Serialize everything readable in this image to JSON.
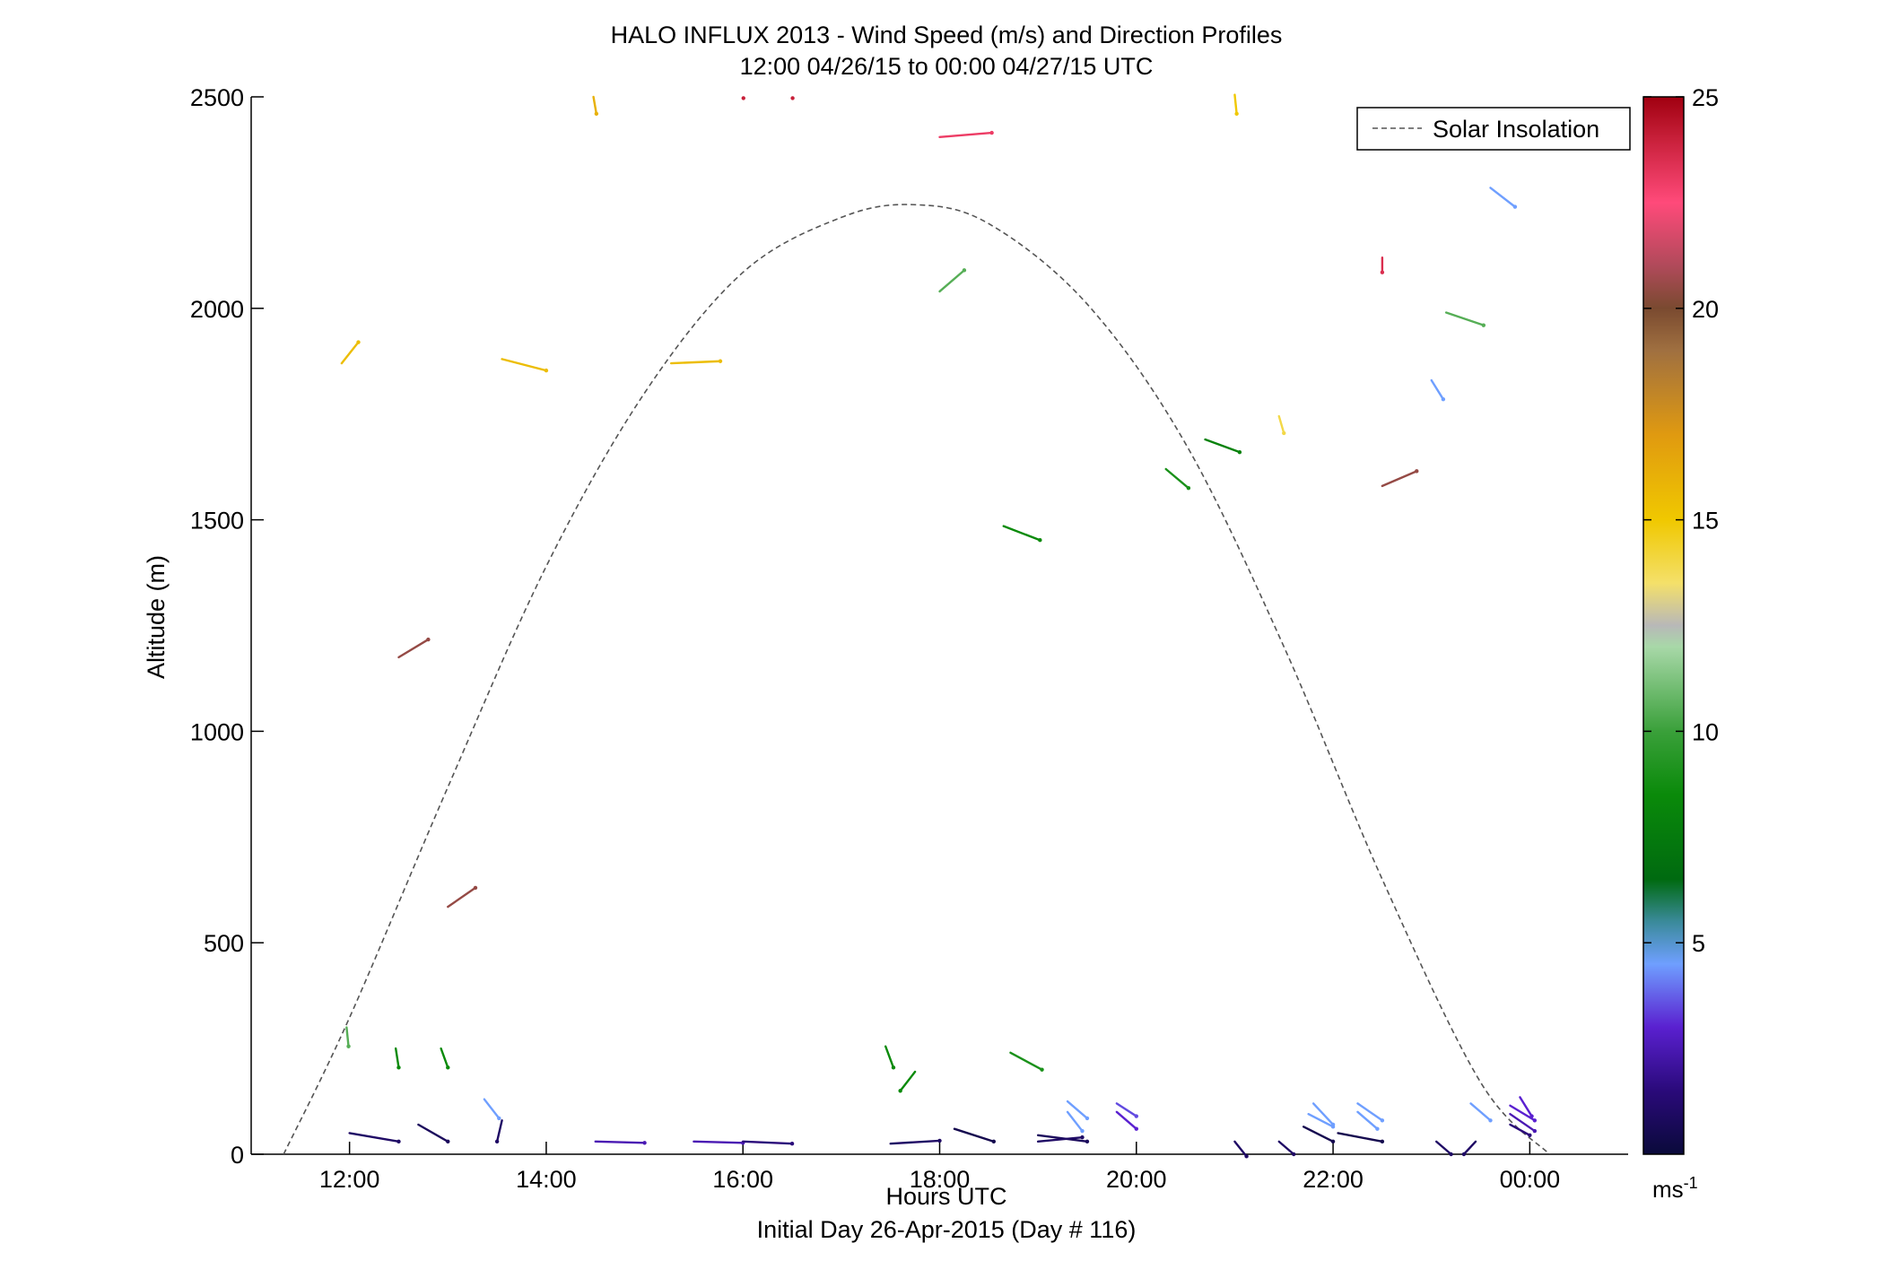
{
  "chart_data": {
    "type": "scatter",
    "title": "HALO INFLUX 2013 - Wind Speed (m/s) and Direction Profiles",
    "subtitle": "12:00 04/26/15 to 00:00 04/27/15  UTC",
    "xlabel": "Hours UTC",
    "xlabel2": "Initial Day 26-Apr-2015 (Day # 116)",
    "ylabel": "Altitude (m)",
    "xlim": [
      11.0,
      25.0
    ],
    "ylim": [
      0,
      2500
    ],
    "x_ticks": [
      12,
      14,
      16,
      18,
      20,
      22,
      24
    ],
    "x_tick_labels": [
      "12:00",
      "14:00",
      "16:00",
      "18:00",
      "20:00",
      "22:00",
      "00:00"
    ],
    "y_ticks": [
      0,
      500,
      1000,
      1500,
      2000,
      2500
    ],
    "y_tick_labels": [
      "0",
      "500",
      "1000",
      "1500",
      "2000",
      "2500"
    ],
    "grid": false,
    "legend": {
      "position": "top-right",
      "entries": [
        "Solar Insolation"
      ]
    },
    "colorbar": {
      "range": [
        0,
        25
      ],
      "ticks": [
        5,
        10,
        15,
        20,
        25
      ],
      "tick_labels": [
        "5",
        "10",
        "15",
        "20",
        "25"
      ],
      "unit_base": "ms",
      "unit_exp": "-1"
    },
    "solar_insolation": {
      "name": "Solar Insolation",
      "x": [
        11.33,
        12.0,
        13.0,
        14.0,
        15.0,
        16.0,
        17.0,
        17.75,
        18.5,
        19.5,
        20.5,
        21.5,
        22.5,
        23.5,
        24.2
      ],
      "y": [
        0,
        323,
        868,
        1390,
        1800,
        2085,
        2215,
        2245,
        2200,
        2010,
        1680,
        1200,
        650,
        170,
        0
      ]
    },
    "wind_vectors": [
      {
        "t": 11.92,
        "alt": 1870,
        "dt": 0.17,
        "dalt": 50,
        "speed": 15.5
      },
      {
        "t": 12.5,
        "alt": 1175,
        "dt": 0.3,
        "dalt": 42,
        "speed": 20.5
      },
      {
        "t": 13.0,
        "alt": 585,
        "dt": 0.28,
        "dalt": 45,
        "speed": 20.5
      },
      {
        "t": 13.55,
        "alt": 1880,
        "dt": 0.45,
        "dalt": -27,
        "speed": 15.5
      },
      {
        "t": 14.48,
        "alt": 2500,
        "dt": 0.03,
        "dalt": -40,
        "speed": 16
      },
      {
        "t": 15.27,
        "alt": 1870,
        "dt": 0.5,
        "dalt": 5,
        "speed": 15.5
      },
      {
        "t": 16.0,
        "alt": 2497,
        "dt": 0.005,
        "dalt": 0,
        "speed": 24
      },
      {
        "t": 16.5,
        "alt": 2497,
        "dt": 0.005,
        "dalt": 0,
        "speed": 24
      },
      {
        "t": 18.0,
        "alt": 2405,
        "dt": 0.53,
        "dalt": 10,
        "speed": 23
      },
      {
        "t": 18.0,
        "alt": 2040,
        "dt": 0.25,
        "dalt": 50,
        "speed": 10.5
      },
      {
        "t": 18.65,
        "alt": 1485,
        "dt": 0.37,
        "dalt": -33,
        "speed": 8.5
      },
      {
        "t": 20.3,
        "alt": 1620,
        "dt": 0.23,
        "dalt": -45,
        "speed": 9
      },
      {
        "t": 20.7,
        "alt": 1690,
        "dt": 0.35,
        "dalt": -30,
        "speed": 8
      },
      {
        "t": 21.0,
        "alt": 2505,
        "dt": 0.02,
        "dalt": -45,
        "speed": 15
      },
      {
        "t": 21.45,
        "alt": 1745,
        "dt": 0.05,
        "dalt": -40,
        "speed": 14
      },
      {
        "t": 22.5,
        "alt": 2120,
        "dt": 0.0,
        "dalt": -35,
        "speed": 23.5
      },
      {
        "t": 22.5,
        "alt": 1580,
        "dt": 0.35,
        "dalt": 35,
        "speed": 20.5
      },
      {
        "t": 23.15,
        "alt": 1990,
        "dt": 0.38,
        "dalt": -30,
        "speed": 10.5
      },
      {
        "t": 23.0,
        "alt": 1830,
        "dt": 0.12,
        "dalt": -45,
        "speed": 4.5
      },
      {
        "t": 23.6,
        "alt": 2285,
        "dt": 0.25,
        "dalt": -45,
        "speed": 4.5
      },
      {
        "t": 11.97,
        "alt": 300,
        "dt": 0.02,
        "dalt": -45,
        "speed": 10.5
      },
      {
        "t": 12.47,
        "alt": 250,
        "dt": 0.03,
        "dalt": -45,
        "speed": 8.5
      },
      {
        "t": 12.93,
        "alt": 250,
        "dt": 0.07,
        "dalt": -45,
        "speed": 8.5
      },
      {
        "t": 13.37,
        "alt": 130,
        "dt": 0.15,
        "dalt": -45,
        "speed": 4.5
      },
      {
        "t": 17.45,
        "alt": 255,
        "dt": 0.08,
        "dalt": -50,
        "speed": 8.5
      },
      {
        "t": 17.75,
        "alt": 195,
        "dt": -0.15,
        "dalt": -45,
        "speed": 8.5
      },
      {
        "t": 18.72,
        "alt": 240,
        "dt": 0.32,
        "dalt": -40,
        "speed": 9
      },
      {
        "t": 19.3,
        "alt": 125,
        "dt": 0.2,
        "dalt": -40,
        "speed": 4.5
      },
      {
        "t": 19.3,
        "alt": 100,
        "dt": 0.15,
        "dalt": -45,
        "speed": 4.5
      },
      {
        "t": 19.8,
        "alt": 120,
        "dt": 0.2,
        "dalt": -30,
        "speed": 3.5
      },
      {
        "t": 19.8,
        "alt": 100,
        "dt": 0.2,
        "dalt": -40,
        "speed": 3
      },
      {
        "t": 21.8,
        "alt": 120,
        "dt": 0.2,
        "dalt": -50,
        "speed": 4.5
      },
      {
        "t": 21.75,
        "alt": 95,
        "dt": 0.25,
        "dalt": -30,
        "speed": 4.5
      },
      {
        "t": 22.25,
        "alt": 120,
        "dt": 0.25,
        "dalt": -40,
        "speed": 4.5
      },
      {
        "t": 22.25,
        "alt": 100,
        "dt": 0.2,
        "dalt": -40,
        "speed": 4.5
      },
      {
        "t": 23.4,
        "alt": 120,
        "dt": 0.2,
        "dalt": -40,
        "speed": 4.5
      },
      {
        "t": 23.9,
        "alt": 135,
        "dt": 0.12,
        "dalt": -45,
        "speed": 3
      },
      {
        "t": 23.8,
        "alt": 115,
        "dt": 0.25,
        "dalt": -35,
        "speed": 3
      },
      {
        "t": 23.8,
        "alt": 95,
        "dt": 0.25,
        "dalt": -40,
        "speed": 2.5
      },
      {
        "t": 23.8,
        "alt": 70,
        "dt": 0.2,
        "dalt": -25,
        "speed": 1.5
      },
      {
        "t": 12.0,
        "alt": 50,
        "dt": 0.5,
        "dalt": -20,
        "speed": 1
      },
      {
        "t": 12.7,
        "alt": 70,
        "dt": 0.3,
        "dalt": -40,
        "speed": 0.8
      },
      {
        "t": 13.55,
        "alt": 80,
        "dt": -0.05,
        "dalt": -50,
        "speed": 1
      },
      {
        "t": 14.5,
        "alt": 30,
        "dt": 0.5,
        "dalt": -3,
        "speed": 2.5
      },
      {
        "t": 15.5,
        "alt": 30,
        "dt": 0.5,
        "dalt": -3,
        "speed": 2.5
      },
      {
        "t": 16.0,
        "alt": 30,
        "dt": 0.5,
        "dalt": -5,
        "speed": 1.5
      },
      {
        "t": 17.5,
        "alt": 25,
        "dt": 0.5,
        "dalt": 7,
        "speed": 1
      },
      {
        "t": 18.15,
        "alt": 60,
        "dt": 0.4,
        "dalt": -30,
        "speed": 0.5
      },
      {
        "t": 19.0,
        "alt": 45,
        "dt": 0.5,
        "dalt": -15,
        "speed": 0.8
      },
      {
        "t": 19.0,
        "alt": 30,
        "dt": 0.45,
        "dalt": 10,
        "speed": 1
      },
      {
        "t": 21.0,
        "alt": 30,
        "dt": 0.12,
        "dalt": -35,
        "speed": 1
      },
      {
        "t": 21.45,
        "alt": 30,
        "dt": 0.15,
        "dalt": -30,
        "speed": 1
      },
      {
        "t": 21.7,
        "alt": 65,
        "dt": 0.3,
        "dalt": -35,
        "speed": 0.5
      },
      {
        "t": 22.05,
        "alt": 50,
        "dt": 0.45,
        "dalt": -20,
        "speed": 0.5
      },
      {
        "t": 23.05,
        "alt": 30,
        "dt": 0.15,
        "dalt": -30,
        "speed": 1
      },
      {
        "t": 23.45,
        "alt": 30,
        "dt": -0.12,
        "dalt": -30,
        "speed": 1
      }
    ]
  }
}
